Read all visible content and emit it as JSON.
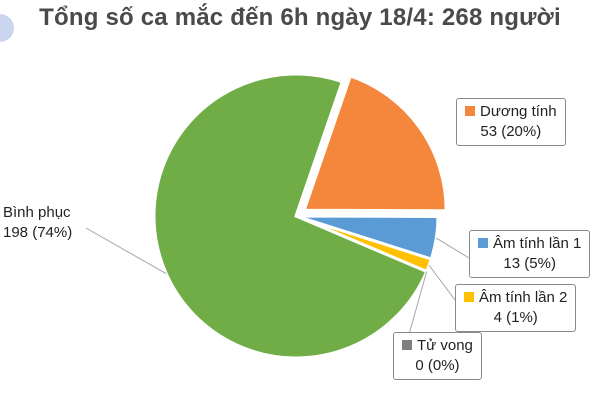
{
  "title": "Tổng số ca mắc đến 6h ngày 18/4: 268 người",
  "chart_data": {
    "type": "pie",
    "total": 268,
    "slices": [
      {
        "name": "Dương tính",
        "value": 53,
        "label": "53 (20%)",
        "color": "#f4873b",
        "exploded": true
      },
      {
        "name": "Âm tính lần 1",
        "value": 13,
        "label": "13 (5%)",
        "color": "#5b9bd5",
        "exploded": false
      },
      {
        "name": "Âm tính lần 2",
        "value": 4,
        "label": "4 (1%)",
        "color": "#ffc000",
        "exploded": false
      },
      {
        "name": "Tử vong",
        "value": 0,
        "label": "0 (0%)",
        "color": "#7f7f7f",
        "exploded": false
      },
      {
        "name": "Bình phục",
        "value": 198,
        "label": "198 (74%)",
        "color": "#70ad47",
        "exploded": false
      }
    ]
  }
}
